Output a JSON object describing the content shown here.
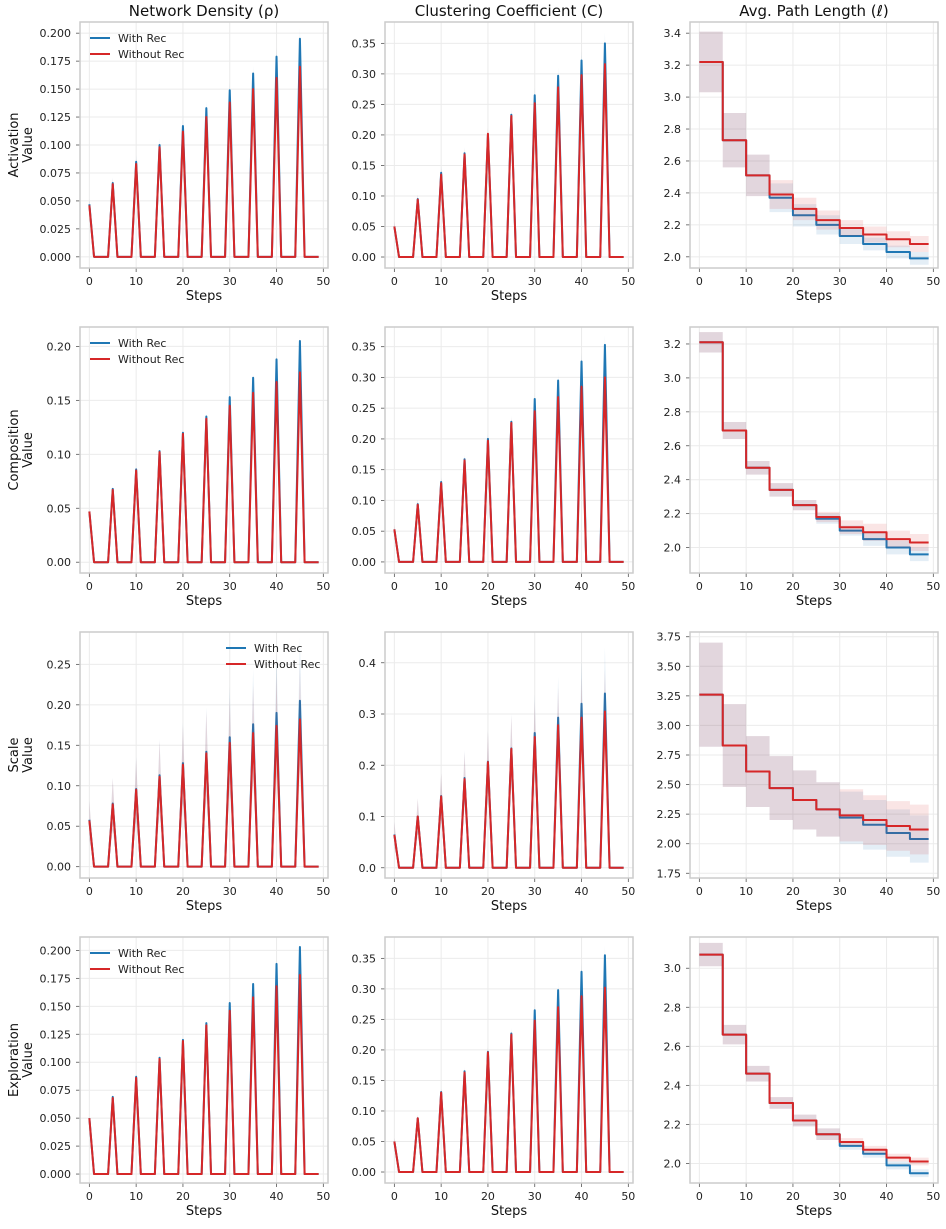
{
  "colors": {
    "with": "#1f77b4",
    "without": "#d62728",
    "grid": "#ebebeb",
    "frame": "#cccccc"
  },
  "columns": [
    "Network Density (ρ)",
    "Clustering Coefficient (C)",
    "Avg. Path Length (ℓ)"
  ],
  "rows": [
    "Activation",
    "Composition",
    "Scale",
    "Exploration"
  ],
  "y_suffix": "Value",
  "legend": {
    "with": "With Rec",
    "without": "Without Rec"
  },
  "chart_data": [
    {
      "type": "line",
      "row": "Activation",
      "metric": "Network Density (ρ)",
      "xlabel": "Steps",
      "xlim": [
        -2,
        51
      ],
      "xticks": [
        0,
        10,
        20,
        30,
        40,
        50
      ],
      "ylim": [
        -0.01,
        0.21
      ],
      "yticks": [
        0.0,
        0.025,
        0.05,
        0.075,
        0.1,
        0.125,
        0.15,
        0.175,
        0.2
      ],
      "ydec": 3,
      "pattern": "spikes",
      "legend": "top-left",
      "series": [
        {
          "name": "With Rec",
          "peaks": [
            0.047,
            0.066,
            0.085,
            0.1,
            0.117,
            0.133,
            0.149,
            0.164,
            0.179,
            0.195
          ],
          "band": [
            0.005,
            0.005,
            0.006,
            0.006,
            0.006,
            0.006,
            0.007,
            0.007,
            0.008,
            0.009
          ]
        },
        {
          "name": "Without Rec",
          "peaks": [
            0.046,
            0.065,
            0.083,
            0.098,
            0.112,
            0.125,
            0.138,
            0.15,
            0.16,
            0.17
          ],
          "band": [
            0.005,
            0.005,
            0.005,
            0.005,
            0.005,
            0.005,
            0.006,
            0.006,
            0.006,
            0.006
          ]
        }
      ]
    },
    {
      "type": "line",
      "row": "Activation",
      "metric": "Clustering Coefficient (C)",
      "xlabel": "Steps",
      "xlim": [
        -2,
        51
      ],
      "xticks": [
        0,
        10,
        20,
        30,
        40,
        50
      ],
      "ylim": [
        -0.018,
        0.385
      ],
      "yticks": [
        0.0,
        0.05,
        0.1,
        0.15,
        0.2,
        0.25,
        0.3,
        0.35
      ],
      "ydec": 2,
      "pattern": "spikes",
      "legend": "none",
      "series": [
        {
          "name": "With Rec",
          "peaks": [
            0.05,
            0.095,
            0.138,
            0.17,
            0.2,
            0.233,
            0.265,
            0.297,
            0.322,
            0.35
          ],
          "band": [
            0.008,
            0.008,
            0.01,
            0.01,
            0.01,
            0.01,
            0.012,
            0.014,
            0.016,
            0.018
          ]
        },
        {
          "name": "Without Rec",
          "peaks": [
            0.05,
            0.094,
            0.135,
            0.168,
            0.202,
            0.231,
            0.252,
            0.278,
            0.298,
            0.316
          ],
          "band": [
            0.008,
            0.008,
            0.01,
            0.01,
            0.01,
            0.01,
            0.01,
            0.012,
            0.012,
            0.014
          ]
        }
      ]
    },
    {
      "type": "line",
      "row": "Activation",
      "metric": "Avg. Path Length (ℓ)",
      "xlabel": "Steps",
      "xlim": [
        -2,
        51
      ],
      "xticks": [
        0,
        10,
        20,
        30,
        40,
        50
      ],
      "ylim": [
        1.93,
        3.47
      ],
      "yticks": [
        2.0,
        2.2,
        2.4,
        2.6,
        2.8,
        3.0,
        3.2,
        3.4
      ],
      "ydec": 1,
      "pattern": "steps",
      "legend": "none",
      "series": [
        {
          "name": "With Rec",
          "levels": [
            3.22,
            2.73,
            2.51,
            2.37,
            2.26,
            2.2,
            2.13,
            2.08,
            2.03,
            1.99
          ],
          "band": [
            0.19,
            0.17,
            0.13,
            0.09,
            0.07,
            0.06,
            0.05,
            0.04,
            0.04,
            0.04
          ]
        },
        {
          "name": "Without Rec",
          "levels": [
            3.22,
            2.73,
            2.51,
            2.39,
            2.3,
            2.23,
            2.18,
            2.14,
            2.11,
            2.08
          ],
          "band": [
            0.19,
            0.17,
            0.13,
            0.09,
            0.07,
            0.06,
            0.05,
            0.05,
            0.05,
            0.05
          ]
        }
      ]
    },
    {
      "type": "line",
      "row": "Composition",
      "metric": "Network Density (ρ)",
      "xlabel": "Steps",
      "xlim": [
        -2,
        51
      ],
      "xticks": [
        0,
        10,
        20,
        30,
        40,
        50
      ],
      "ylim": [
        -0.01,
        0.218
      ],
      "yticks": [
        0.0,
        0.05,
        0.1,
        0.15,
        0.2
      ],
      "ydec": 2,
      "pattern": "spikes",
      "legend": "top-left",
      "series": [
        {
          "name": "With Rec",
          "peaks": [
            0.047,
            0.068,
            0.086,
            0.103,
            0.12,
            0.135,
            0.153,
            0.171,
            0.188,
            0.205
          ],
          "band": [
            0.002,
            0.002,
            0.002,
            0.002,
            0.002,
            0.003,
            0.003,
            0.004,
            0.004,
            0.005
          ]
        },
        {
          "name": "Without Rec",
          "peaks": [
            0.047,
            0.067,
            0.085,
            0.102,
            0.119,
            0.133,
            0.145,
            0.157,
            0.167,
            0.176
          ],
          "band": [
            0.002,
            0.002,
            0.002,
            0.002,
            0.002,
            0.002,
            0.003,
            0.003,
            0.003,
            0.003
          ]
        }
      ]
    },
    {
      "type": "line",
      "row": "Composition",
      "metric": "Clustering Coefficient (C)",
      "xlabel": "Steps",
      "xlim": [
        -2,
        51
      ],
      "xticks": [
        0,
        10,
        20,
        30,
        40,
        50
      ],
      "ylim": [
        -0.018,
        0.382
      ],
      "yticks": [
        0.0,
        0.05,
        0.1,
        0.15,
        0.2,
        0.25,
        0.3,
        0.35
      ],
      "ydec": 2,
      "pattern": "spikes",
      "legend": "none",
      "series": [
        {
          "name": "With Rec",
          "peaks": [
            0.053,
            0.094,
            0.13,
            0.167,
            0.2,
            0.228,
            0.265,
            0.295,
            0.326,
            0.353
          ],
          "band": [
            0.007,
            0.008,
            0.008,
            0.008,
            0.009,
            0.01,
            0.01,
            0.012,
            0.014,
            0.016
          ]
        },
        {
          "name": "Without Rec",
          "peaks": [
            0.053,
            0.093,
            0.128,
            0.165,
            0.197,
            0.226,
            0.245,
            0.268,
            0.285,
            0.3
          ],
          "band": [
            0.007,
            0.008,
            0.008,
            0.008,
            0.009,
            0.01,
            0.01,
            0.01,
            0.012,
            0.012
          ]
        }
      ]
    },
    {
      "type": "line",
      "row": "Composition",
      "metric": "Avg. Path Length (ℓ)",
      "xlabel": "Steps",
      "xlim": [
        -2,
        51
      ],
      "xticks": [
        0,
        10,
        20,
        30,
        40,
        50
      ],
      "ylim": [
        1.85,
        3.3
      ],
      "yticks": [
        2.0,
        2.2,
        2.4,
        2.6,
        2.8,
        3.0,
        3.2
      ],
      "ydec": 1,
      "pattern": "steps",
      "legend": "none",
      "series": [
        {
          "name": "With Rec",
          "levels": [
            3.21,
            2.69,
            2.47,
            2.34,
            2.25,
            2.17,
            2.1,
            2.05,
            2.0,
            1.96
          ],
          "band": [
            0.06,
            0.05,
            0.04,
            0.04,
            0.03,
            0.03,
            0.03,
            0.04,
            0.04,
            0.04
          ]
        },
        {
          "name": "Without Rec",
          "levels": [
            3.21,
            2.69,
            2.47,
            2.34,
            2.25,
            2.18,
            2.12,
            2.09,
            2.05,
            2.03
          ],
          "band": [
            0.06,
            0.05,
            0.04,
            0.04,
            0.03,
            0.03,
            0.04,
            0.05,
            0.05,
            0.05
          ]
        }
      ]
    },
    {
      "type": "line",
      "row": "Scale",
      "metric": "Network Density (ρ)",
      "xlabel": "Steps",
      "xlim": [
        -2,
        51
      ],
      "xticks": [
        0,
        10,
        20,
        30,
        40,
        50
      ],
      "ylim": [
        -0.014,
        0.29
      ],
      "yticks": [
        0.0,
        0.05,
        0.1,
        0.15,
        0.2,
        0.25
      ],
      "ydec": 2,
      "pattern": "spikes",
      "legend": "top-right",
      "series": [
        {
          "name": "With Rec",
          "peaks": [
            0.058,
            0.078,
            0.096,
            0.113,
            0.128,
            0.142,
            0.16,
            0.176,
            0.19,
            0.205
          ],
          "band": [
            0.024,
            0.032,
            0.04,
            0.045,
            0.05,
            0.055,
            0.062,
            0.068,
            0.072,
            0.078
          ]
        },
        {
          "name": "Without Rec",
          "peaks": [
            0.057,
            0.077,
            0.095,
            0.111,
            0.126,
            0.14,
            0.153,
            0.165,
            0.174,
            0.182
          ],
          "band": [
            0.024,
            0.032,
            0.038,
            0.044,
            0.048,
            0.052,
            0.056,
            0.06,
            0.062,
            0.064
          ]
        }
      ]
    },
    {
      "type": "line",
      "row": "Scale",
      "metric": "Clustering Coefficient (C)",
      "xlabel": "Steps",
      "xlim": [
        -2,
        51
      ],
      "xticks": [
        0,
        10,
        20,
        30,
        40,
        50
      ],
      "ylim": [
        -0.02,
        0.46
      ],
      "yticks": [
        0.0,
        0.1,
        0.2,
        0.3,
        0.4
      ],
      "ydec": 1,
      "pattern": "spikes",
      "legend": "none",
      "series": [
        {
          "name": "With Rec",
          "peaks": [
            0.065,
            0.1,
            0.14,
            0.175,
            0.207,
            0.233,
            0.263,
            0.293,
            0.32,
            0.34
          ],
          "band": [
            0.025,
            0.035,
            0.045,
            0.055,
            0.062,
            0.068,
            0.075,
            0.08,
            0.085,
            0.09
          ]
        },
        {
          "name": "Without Rec",
          "peaks": [
            0.064,
            0.1,
            0.139,
            0.173,
            0.206,
            0.232,
            0.255,
            0.278,
            0.293,
            0.305
          ],
          "band": [
            0.025,
            0.035,
            0.045,
            0.052,
            0.06,
            0.065,
            0.07,
            0.074,
            0.078,
            0.08
          ]
        }
      ]
    },
    {
      "type": "line",
      "row": "Scale",
      "metric": "Avg. Path Length (ℓ)",
      "xlabel": "Steps",
      "xlim": [
        -2,
        51
      ],
      "xticks": [
        0,
        10,
        20,
        30,
        40,
        50
      ],
      "ylim": [
        1.71,
        3.79
      ],
      "yticks": [
        1.75,
        2.0,
        2.25,
        2.5,
        2.75,
        3.0,
        3.25,
        3.5,
        3.75
      ],
      "ydec": 2,
      "pattern": "steps",
      "legend": "none",
      "series": [
        {
          "name": "With Rec",
          "levels": [
            3.26,
            2.83,
            2.61,
            2.47,
            2.37,
            2.29,
            2.22,
            2.16,
            2.09,
            2.04
          ],
          "band": [
            0.44,
            0.35,
            0.3,
            0.27,
            0.25,
            0.23,
            0.22,
            0.21,
            0.2,
            0.2
          ]
        },
        {
          "name": "Without Rec",
          "levels": [
            3.26,
            2.83,
            2.61,
            2.47,
            2.37,
            2.29,
            2.24,
            2.2,
            2.15,
            2.12
          ],
          "band": [
            0.44,
            0.35,
            0.3,
            0.27,
            0.25,
            0.23,
            0.22,
            0.21,
            0.21,
            0.21
          ]
        }
      ]
    },
    {
      "type": "line",
      "row": "Exploration",
      "metric": "Network Density (ρ)",
      "xlabel": "Steps",
      "xlim": [
        -2,
        51
      ],
      "xticks": [
        0,
        10,
        20,
        30,
        40,
        50
      ],
      "ylim": [
        -0.008,
        0.212
      ],
      "yticks": [
        0.0,
        0.025,
        0.05,
        0.075,
        0.1,
        0.125,
        0.15,
        0.175,
        0.2
      ],
      "ydec": 3,
      "pattern": "spikes",
      "legend": "top-left",
      "series": [
        {
          "name": "With Rec",
          "peaks": [
            0.05,
            0.069,
            0.087,
            0.104,
            0.12,
            0.135,
            0.153,
            0.17,
            0.188,
            0.203
          ],
          "band": [
            0.002,
            0.002,
            0.002,
            0.002,
            0.002,
            0.002,
            0.003,
            0.003,
            0.003,
            0.004
          ]
        },
        {
          "name": "Without Rec",
          "peaks": [
            0.05,
            0.068,
            0.086,
            0.103,
            0.119,
            0.133,
            0.146,
            0.158,
            0.168,
            0.178
          ],
          "band": [
            0.002,
            0.002,
            0.002,
            0.002,
            0.002,
            0.002,
            0.002,
            0.003,
            0.003,
            0.003
          ]
        }
      ]
    },
    {
      "type": "line",
      "row": "Exploration",
      "metric": "Clustering Coefficient (C)",
      "xlabel": "Steps",
      "xlim": [
        -2,
        51
      ],
      "xticks": [
        0,
        10,
        20,
        30,
        40,
        50
      ],
      "ylim": [
        -0.018,
        0.385
      ],
      "yticks": [
        0.0,
        0.05,
        0.1,
        0.15,
        0.2,
        0.25,
        0.3,
        0.35
      ],
      "ydec": 2,
      "pattern": "spikes",
      "legend": "none",
      "series": [
        {
          "name": "With Rec",
          "peaks": [
            0.05,
            0.088,
            0.131,
            0.165,
            0.197,
            0.227,
            0.265,
            0.298,
            0.328,
            0.355
          ],
          "band": [
            0.006,
            0.006,
            0.006,
            0.007,
            0.008,
            0.009,
            0.01,
            0.012,
            0.014,
            0.016
          ]
        },
        {
          "name": "Without Rec",
          "peaks": [
            0.05,
            0.088,
            0.13,
            0.163,
            0.196,
            0.225,
            0.248,
            0.27,
            0.288,
            0.302
          ],
          "band": [
            0.006,
            0.006,
            0.006,
            0.007,
            0.008,
            0.008,
            0.009,
            0.01,
            0.011,
            0.012
          ]
        }
      ]
    },
    {
      "type": "line",
      "row": "Exploration",
      "metric": "Avg. Path Length (ℓ)",
      "xlabel": "Steps",
      "xlim": [
        -2,
        51
      ],
      "xticks": [
        0,
        10,
        20,
        30,
        40,
        50
      ],
      "ylim": [
        1.9,
        3.16
      ],
      "yticks": [
        2.0,
        2.2,
        2.4,
        2.6,
        2.8,
        3.0
      ],
      "ydec": 1,
      "pattern": "steps",
      "legend": "none",
      "series": [
        {
          "name": "With Rec",
          "levels": [
            3.07,
            2.66,
            2.46,
            2.31,
            2.22,
            2.15,
            2.09,
            2.05,
            1.99,
            1.95
          ],
          "band": [
            0.06,
            0.05,
            0.04,
            0.03,
            0.03,
            0.03,
            0.02,
            0.02,
            0.02,
            0.02
          ]
        },
        {
          "name": "Without Rec",
          "levels": [
            3.07,
            2.66,
            2.46,
            2.31,
            2.22,
            2.15,
            2.11,
            2.07,
            2.03,
            2.01
          ],
          "band": [
            0.06,
            0.05,
            0.04,
            0.03,
            0.03,
            0.03,
            0.02,
            0.02,
            0.02,
            0.02
          ]
        }
      ]
    }
  ]
}
